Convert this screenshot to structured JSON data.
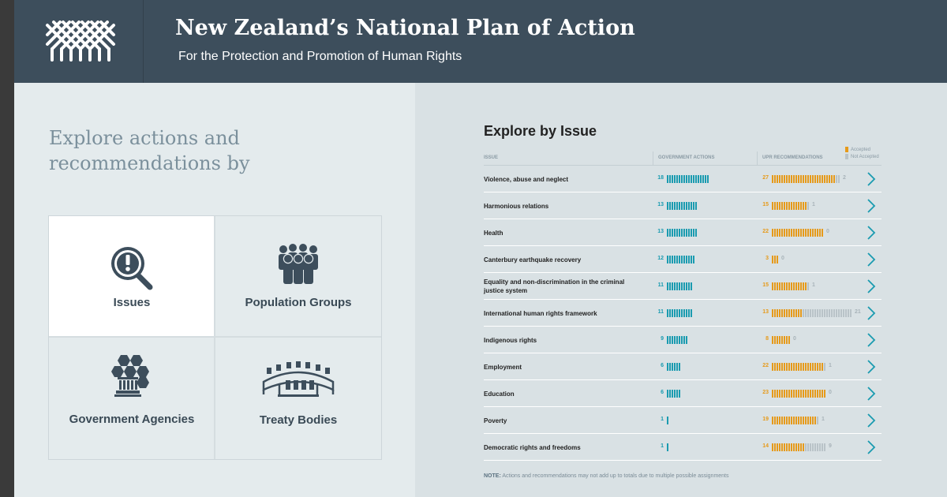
{
  "header": {
    "title": "New Zealand’s National Plan of Action",
    "subtitle": "For the Protection and Promotion of Human Rights"
  },
  "left": {
    "heading": "Explore actions and recommendations by",
    "tiles": [
      {
        "label": "Issues",
        "icon": "magnifier-exclamation-icon",
        "active": true
      },
      {
        "label": "Population Groups",
        "icon": "people-group-icon",
        "active": false
      },
      {
        "label": "Government Agencies",
        "icon": "government-building-icon",
        "active": false
      },
      {
        "label": "Treaty Bodies",
        "icon": "meeting-table-icon",
        "active": false
      }
    ]
  },
  "right": {
    "title": "Explore by Issue",
    "columns": {
      "issue": "ISSUE",
      "gov": "GOVERNMENT ACTIONS",
      "upr": "UPR RECOMMENDATIONS"
    },
    "legend": {
      "accepted": "Accepted",
      "not_accepted": "Not Accepted"
    },
    "colors": {
      "gov": "#1a9bb0",
      "accepted": "#e69a1a",
      "not_accepted": "#b9c3c8",
      "chevron": "#1a9bb0"
    },
    "rows": [
      {
        "issue": "Violence, abuse and neglect",
        "gov": 18,
        "accepted": 27,
        "not_accepted": 2
      },
      {
        "issue": "Harmonious relations",
        "gov": 13,
        "accepted": 15,
        "not_accepted": 1
      },
      {
        "issue": "Health",
        "gov": 13,
        "accepted": 22,
        "not_accepted": 0
      },
      {
        "issue": "Canterbury earthquake recovery",
        "gov": 12,
        "accepted": 3,
        "not_accepted": 0
      },
      {
        "issue": "Equality and non-discrimination in the criminal justice system",
        "gov": 11,
        "accepted": 15,
        "not_accepted": 1
      },
      {
        "issue": "International human rights framework",
        "gov": 11,
        "accepted": 13,
        "not_accepted": 21
      },
      {
        "issue": "Indigenous rights",
        "gov": 9,
        "accepted": 8,
        "not_accepted": 0
      },
      {
        "issue": "Employment",
        "gov": 6,
        "accepted": 22,
        "not_accepted": 1
      },
      {
        "issue": "Education",
        "gov": 6,
        "accepted": 23,
        "not_accepted": 0
      },
      {
        "issue": "Poverty",
        "gov": 1,
        "accepted": 19,
        "not_accepted": 1
      },
      {
        "issue": "Democratic rights and freedoms",
        "gov": 1,
        "accepted": 14,
        "not_accepted": 9
      }
    ],
    "note_label": "NOTE:",
    "note_text": " Actions and recommendations may not add up to totals due to multiple possible assignments"
  }
}
